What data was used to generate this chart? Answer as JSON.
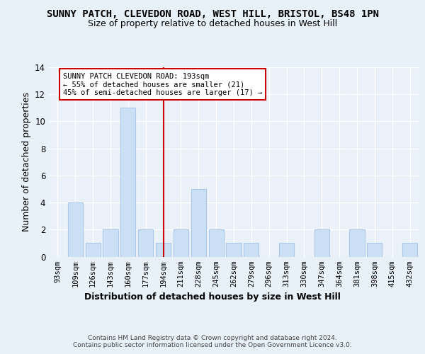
{
  "title": "SUNNY PATCH, CLEVEDON ROAD, WEST HILL, BRISTOL, BS48 1PN",
  "subtitle": "Size of property relative to detached houses in West Hill",
  "xlabel": "Distribution of detached houses by size in West Hill",
  "ylabel": "Number of detached properties",
  "bins": [
    "93sqm",
    "109sqm",
    "126sqm",
    "143sqm",
    "160sqm",
    "177sqm",
    "194sqm",
    "211sqm",
    "228sqm",
    "245sqm",
    "262sqm",
    "279sqm",
    "296sqm",
    "313sqm",
    "330sqm",
    "347sqm",
    "364sqm",
    "381sqm",
    "398sqm",
    "415sqm",
    "432sqm"
  ],
  "values": [
    0,
    4,
    1,
    2,
    11,
    2,
    1,
    2,
    5,
    2,
    1,
    1,
    0,
    1,
    0,
    2,
    0,
    2,
    1,
    0,
    1
  ],
  "bar_color": "#cce0f5",
  "bar_edge_color": "#aac8e8",
  "vline_x": 6.0,
  "vline_color": "#cc0000",
  "annotation_text": "SUNNY PATCH CLEVEDON ROAD: 193sqm\n← 55% of detached houses are smaller (21)\n45% of semi-detached houses are larger (17) →",
  "annotation_box_color": "#ffffff",
  "annotation_box_edge": "#cc0000",
  "ylim": [
    0,
    14
  ],
  "yticks": [
    0,
    2,
    4,
    6,
    8,
    10,
    12,
    14
  ],
  "footer": "Contains HM Land Registry data © Crown copyright and database right 2024.\nContains public sector information licensed under the Open Government Licence v3.0.",
  "bg_color": "#e8f0f8",
  "plot_bg_color": "#eaf1f8",
  "title_fontsize": 10,
  "subtitle_fontsize": 9,
  "label_fontsize": 9
}
